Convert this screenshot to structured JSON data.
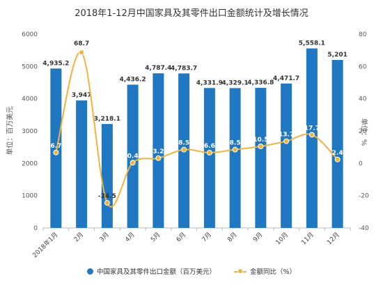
{
  "chart_data": {
    "type": "bar",
    "title": "2018年1-12月中国家具及其零件出口金额统计及增长情况",
    "categories": [
      "2018年1月",
      "2月",
      "3月",
      "4月",
      "5月",
      "6月",
      "7月",
      "8月",
      "9月",
      "10月",
      "11月",
      "12月"
    ],
    "series": [
      {
        "name": "中国家具及其零件出口金额（百万美元）",
        "type": "bar",
        "axis": "left",
        "values": [
          4935.2,
          3947,
          3218.1,
          4436.2,
          4787.4,
          4783.7,
          4331.9,
          4329.1,
          4336.8,
          4471.7,
          5558.1,
          5201
        ],
        "labels": [
          "4,935.2",
          "3,947",
          "3,218.1",
          "4,436.2",
          "4,787.4",
          "4,783.7",
          "4,331.9",
          "4,329.1",
          "4,336.8",
          "4,471.7",
          "5,558.1",
          "5,201"
        ]
      },
      {
        "name": "金额同比（%）",
        "type": "line",
        "axis": "right",
        "values": [
          6.7,
          68.7,
          -24.5,
          0.4,
          3.2,
          8.5,
          6.6,
          8.5,
          10.5,
          13.7,
          17.7,
          2.4
        ],
        "labels": [
          "6.7",
          "68.7",
          "-24.5",
          "0.4",
          "3.2",
          "8.5",
          "6.6",
          "8.5",
          "10.5",
          "13.7",
          "17.7",
          "2.4"
        ]
      }
    ],
    "ylabel": "单位：百万美元",
    "ylabel_right": "单位：%",
    "ylim": [
      0,
      6000
    ],
    "ylim_right": [
      -40,
      80
    ],
    "yticks": [
      0,
      1000,
      2000,
      3000,
      4000,
      5000,
      6000
    ],
    "yticks_right": [
      -40,
      -20,
      0,
      20,
      40,
      60,
      80
    ],
    "grid": false,
    "legend_position": "bottom",
    "colors": {
      "bar": "#1f78c1",
      "line": "#f0b43c"
    }
  }
}
